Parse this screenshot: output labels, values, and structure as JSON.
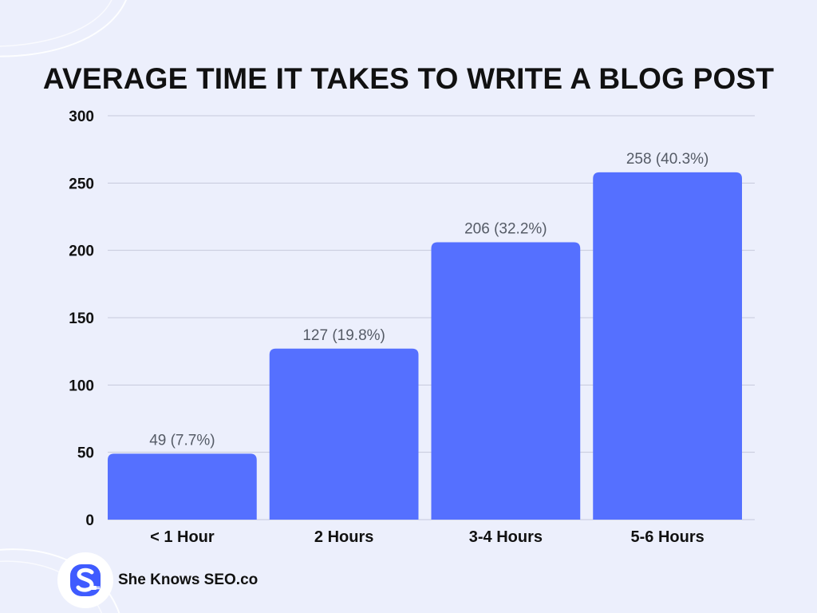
{
  "chart_data": {
    "type": "bar",
    "title": "AVERAGE TIME IT TAKES TO WRITE A BLOG POST",
    "categories": [
      "< 1 Hour",
      "2 Hours",
      "3-4 Hours",
      "5-6 Hours"
    ],
    "values": [
      49,
      127,
      206,
      258
    ],
    "data_labels": [
      "49 (7.7%)",
      "127 (19.8%)",
      "206 (32.2%)",
      "258 (40.3%)"
    ],
    "yticks": [
      0,
      50,
      100,
      150,
      200,
      250,
      300
    ],
    "ylim": [
      0,
      300
    ],
    "xlabel": "",
    "ylabel": "",
    "grid": true,
    "bar_color": "#5570ff"
  },
  "brand": {
    "name": "She Knows SEO.co",
    "logo_icon": "s-letter-plug-logo-icon",
    "logo_color": "#3f5bff"
  }
}
